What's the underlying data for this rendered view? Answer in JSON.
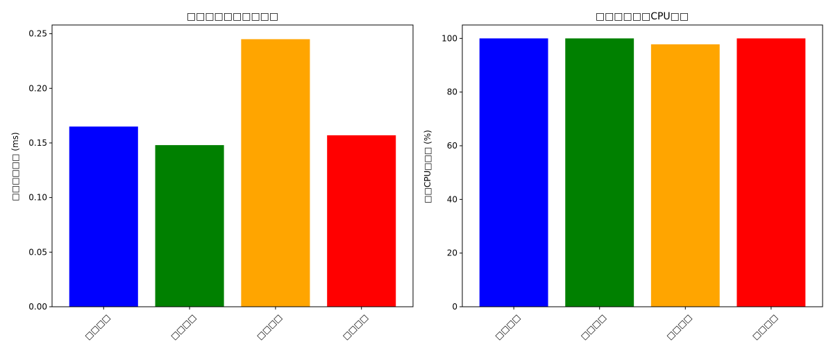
{
  "chart_data": [
    {
      "type": "bar",
      "title": "□□□□□□□□□□",
      "xlabel": "",
      "ylabel": "□□□□□□ (ms)",
      "categories": [
        "□□□□",
        "□□□□",
        "□□□□",
        "□□□□"
      ],
      "values": [
        0.165,
        0.148,
        0.245,
        0.157
      ],
      "colors": [
        "#0000ff",
        "#008000",
        "#ffa500",
        "#ff0000"
      ],
      "ylim": [
        0,
        0.258
      ],
      "yticks": [
        0.0,
        0.05,
        0.1,
        0.15,
        0.2,
        0.25
      ],
      "ytick_labels": [
        "0.00",
        "0.05",
        "0.10",
        "0.15",
        "0.20",
        "0.25"
      ],
      "grid": false
    },
    {
      "type": "bar",
      "title": "□□□□□□CPU□□",
      "xlabel": "",
      "ylabel": "□□CPU□□□ (%)",
      "categories": [
        "□□□□",
        "□□□□",
        "□□□□",
        "□□□□"
      ],
      "values": [
        100.0,
        100.0,
        97.8,
        100.0
      ],
      "colors": [
        "#0000ff",
        "#008000",
        "#ffa500",
        "#ff0000"
      ],
      "ylim": [
        0,
        105
      ],
      "yticks": [
        0,
        20,
        40,
        60,
        80,
        100
      ],
      "ytick_labels": [
        "0",
        "20",
        "40",
        "60",
        "80",
        "100"
      ],
      "grid": false
    }
  ]
}
